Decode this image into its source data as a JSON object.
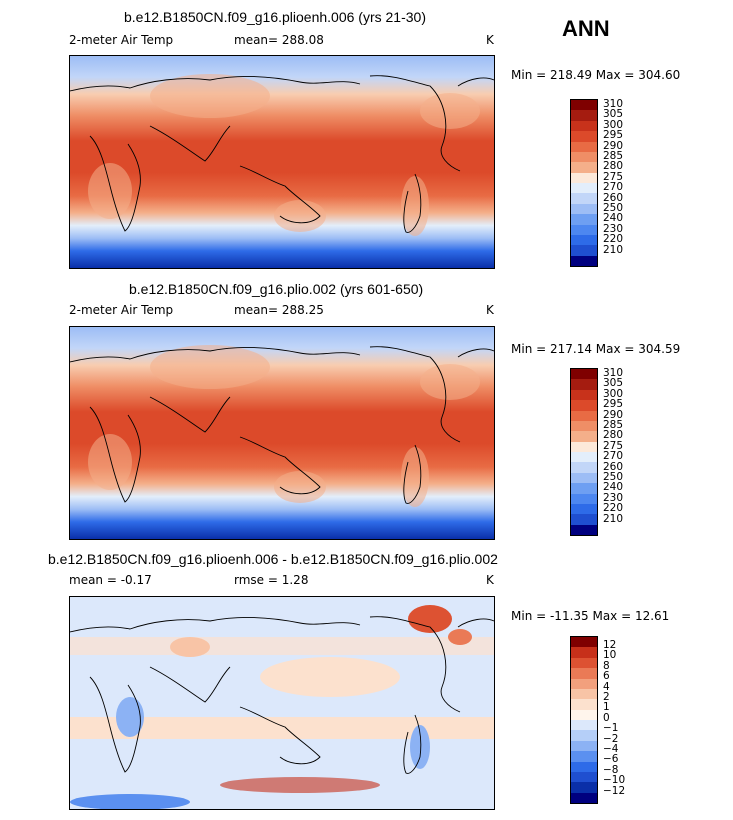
{
  "season": "ANN",
  "colors": {
    "abs_scale": [
      "#00007F",
      "#0A2FA8",
      "#1F4FD0",
      "#2E6BE8",
      "#4D87F0",
      "#6E9FF2",
      "#9DBDF5",
      "#C2D6F8",
      "#E3EEFB",
      "#FCE9DA",
      "#F8CDB0",
      "#F4AF8A",
      "#EF8E66",
      "#E86B44",
      "#DC4A2A",
      "#C8321B",
      "#A51C10",
      "#7F0000"
    ],
    "diff_scale": [
      "#00007F",
      "#0A2FA8",
      "#1F4FD0",
      "#2E6BE8",
      "#5B90F0",
      "#8CB2F4",
      "#B5CFF8",
      "#DCE8FB",
      "#FFF5EC",
      "#FCE1CE",
      "#F8C4A6",
      "#F2A07D",
      "#EA7A56",
      "#DD5232",
      "#C7301A",
      "#7F0000"
    ]
  },
  "panels": [
    {
      "title": "b.e12.B1850CN.f09_g16.plioenh.006 (yrs 21-30)",
      "variable": "2-meter Air Temp",
      "mean_text": "mean= 288.08",
      "units": "K",
      "minmax": "Min = 218.49 Max = 304.60"
    },
    {
      "title": "b.e12.B1850CN.f09_g16.plio.002 (yrs 601-650)",
      "variable": "2-meter Air Temp",
      "mean_text": "mean= 288.25",
      "units": "K",
      "minmax": "Min = 217.14 Max = 304.59"
    },
    {
      "title": "b.e12.B1850CN.f09_g16.plioenh.006 - b.e12.B1850CN.f09_g16.plio.002",
      "mean_text": "mean =  -0.17",
      "rmse_text": "rmse =   1.28",
      "units": "K",
      "minmax": "Min = -11.35 Max =  12.61"
    }
  ],
  "chart_data": [
    {
      "type": "heatmap",
      "title": "b.e12.B1850CN.f09_g16.plioenh.006 (yrs 21-30)",
      "variable": "2-meter Air Temp",
      "units": "K",
      "mean": 288.08,
      "min": 218.49,
      "max": 304.6,
      "colorbar_levels": [
        "310",
        "305",
        "300",
        "295",
        "290",
        "285",
        "280",
        "275",
        "270",
        "260",
        "250",
        "240",
        "230",
        "220",
        "210"
      ]
    },
    {
      "type": "heatmap",
      "title": "b.e12.B1850CN.f09_g16.plio.002 (yrs 601-650)",
      "variable": "2-meter Air Temp",
      "units": "K",
      "mean": 288.25,
      "min": 217.14,
      "max": 304.59,
      "colorbar_levels": [
        "310",
        "305",
        "300",
        "295",
        "290",
        "285",
        "280",
        "275",
        "270",
        "260",
        "250",
        "240",
        "230",
        "220",
        "210"
      ]
    },
    {
      "type": "heatmap",
      "title": "b.e12.B1850CN.f09_g16.plioenh.006 - b.e12.B1850CN.f09_g16.plio.002",
      "units": "K",
      "mean": -0.17,
      "rmse": 1.28,
      "min": -11.35,
      "max": 12.61,
      "colorbar_levels": [
        "12",
        "10",
        "8",
        "6",
        "4",
        "2",
        "1",
        "0",
        "−1",
        "−2",
        "−4",
        "−6",
        "−8",
        "−10",
        "−12"
      ]
    }
  ]
}
